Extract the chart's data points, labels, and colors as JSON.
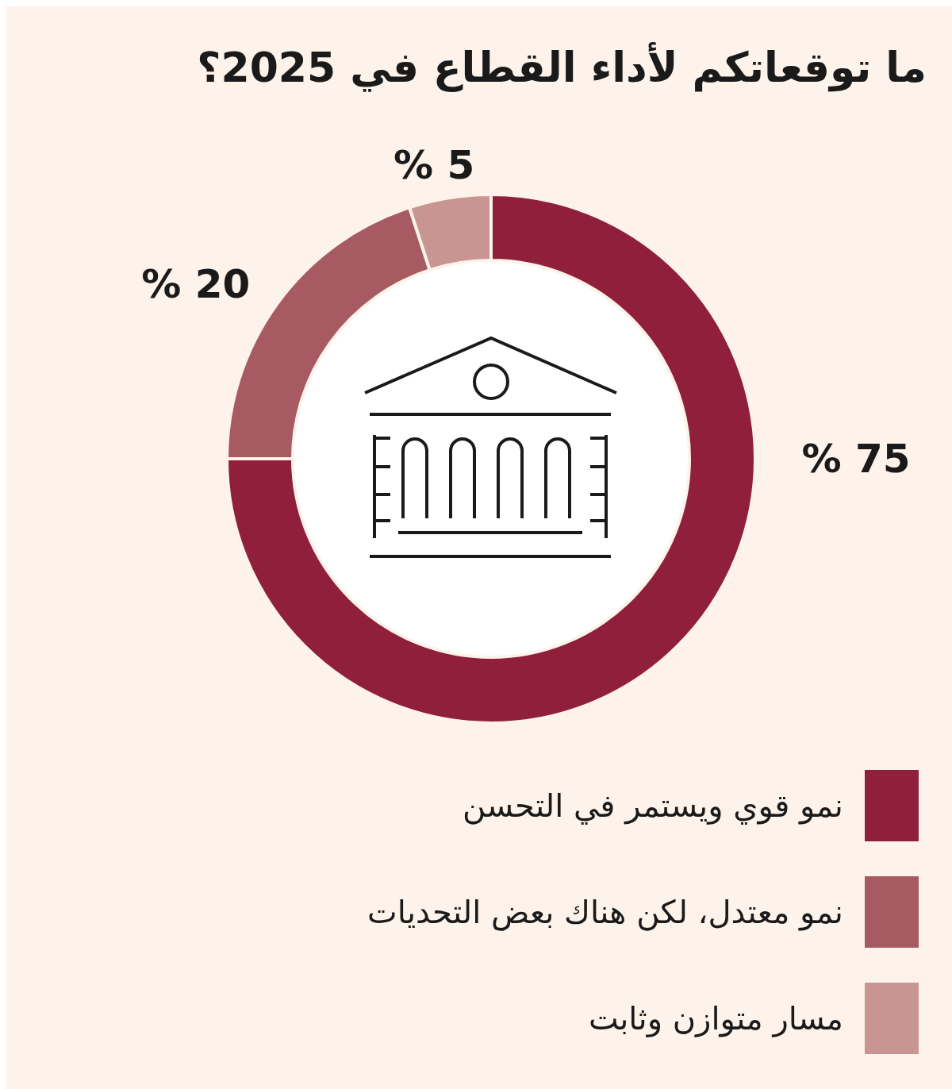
{
  "chart_data": {
    "type": "donut",
    "title": "ما توقعاتكم لأداء القطاع في 2025؟",
    "categories": [
      "نمو قوي ويستمر في التحسن",
      "نمو معتدل، لكن هناك بعض التحديات",
      "مسار متوازن وثابت"
    ],
    "values": [
      75,
      20,
      5
    ],
    "colors": [
      "#8f1f3b",
      "#a85a62",
      "#c99593"
    ],
    "value_labels": [
      "% 75",
      "% 20",
      "% 5"
    ],
    "legend": "bottom"
  }
}
